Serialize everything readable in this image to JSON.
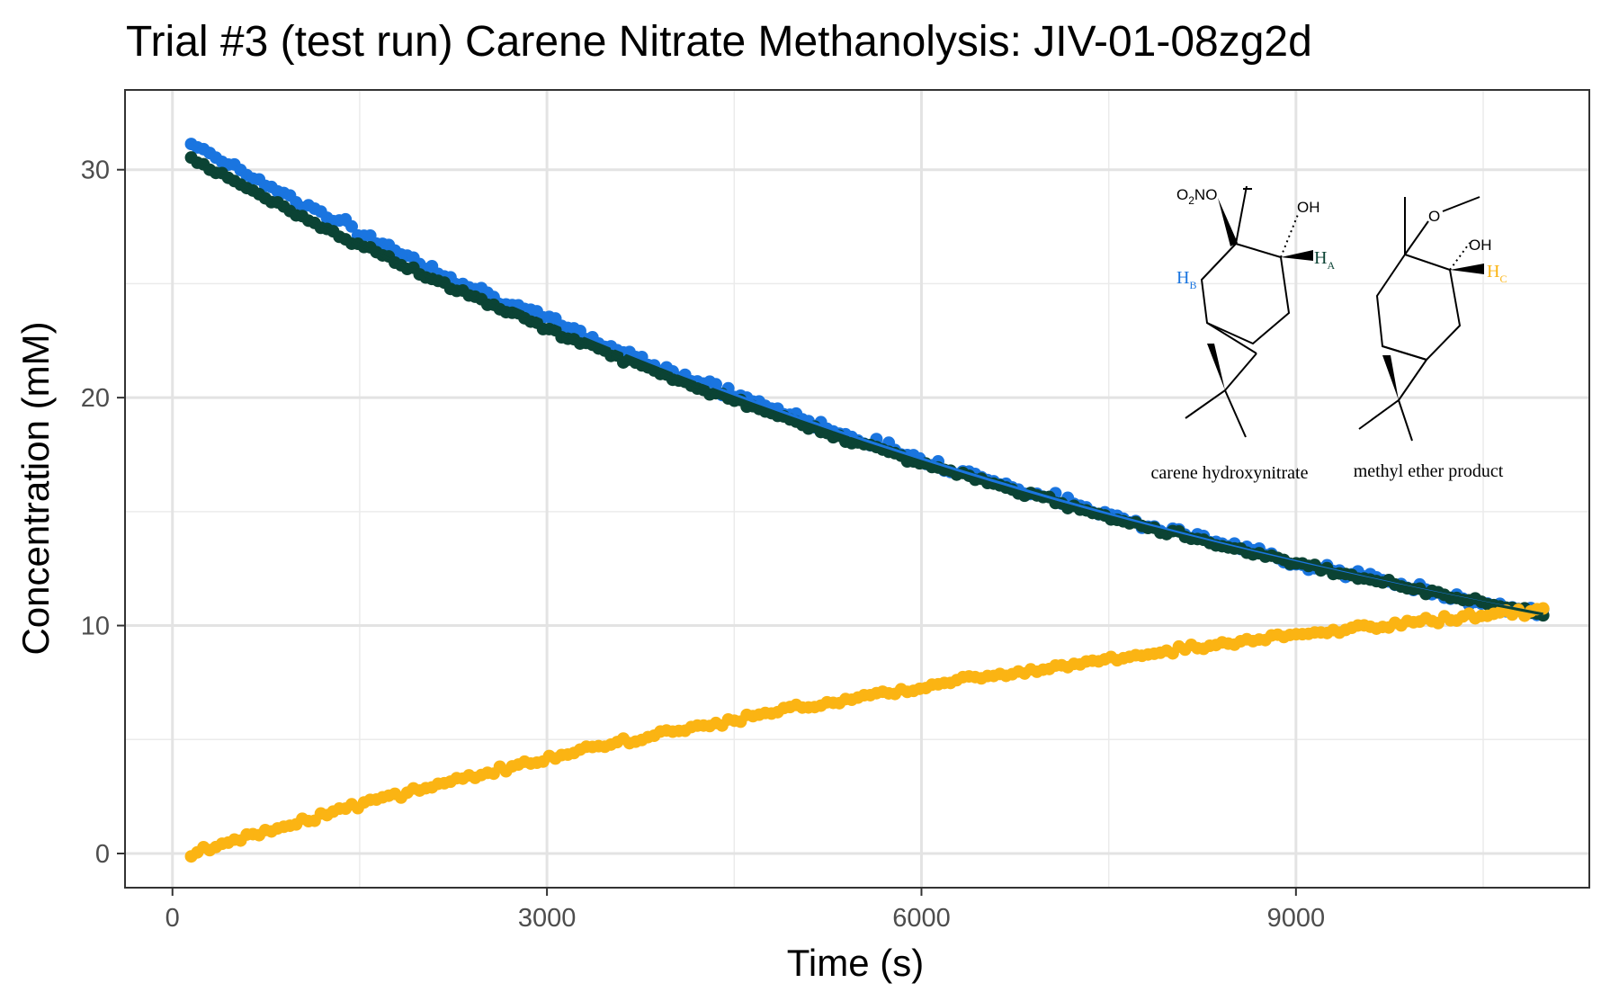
{
  "chart_data": {
    "type": "scatter",
    "title": "Trial #3 (test run) Carene Nitrate Methanolysis: JIV-01-08zg2d",
    "xlabel": "Time (s)",
    "ylabel": "Concentration (mM)",
    "xlim": [
      -380,
      11350
    ],
    "ylim": [
      -1.5,
      33.5
    ],
    "xticks": [
      0,
      3000,
      6000,
      9000
    ],
    "yticks": [
      0,
      10,
      20,
      30
    ],
    "xtick_labels": [
      "0",
      "3000",
      "6000",
      "9000"
    ],
    "ytick_labels": [
      "0",
      "10",
      "20",
      "30"
    ],
    "grid": true,
    "legend": "none",
    "x_start": 150,
    "x_end": 10980,
    "n_points": 220,
    "series": [
      {
        "color": "#1a75e0",
        "y_start": 31.2,
        "y_end": 10.5,
        "noise": 0.32,
        "has_fit_line": true
      },
      {
        "color": "#0b4334",
        "y_start": 30.5,
        "y_end": 10.5,
        "noise": 0.18,
        "has_fit_line": true
      },
      {
        "color": "#fbb413",
        "y_start": 0.0,
        "y_end": 10.7,
        "noise": 0.22,
        "has_fit_line": false
      }
    ],
    "annotations": {
      "structure_1_caption": "carene hydroxynitrate",
      "structure_2_caption": "methyl ether product",
      "o2no": "O2NO",
      "oh_1": "OH",
      "oh_2": "OH",
      "o_methyl": "O",
      "h_a": "HA",
      "h_b": "HB",
      "h_c": "HC",
      "h_a_color": "#0b4334",
      "h_b_color": "#1a75e0",
      "h_c_color": "#fbb413"
    }
  }
}
